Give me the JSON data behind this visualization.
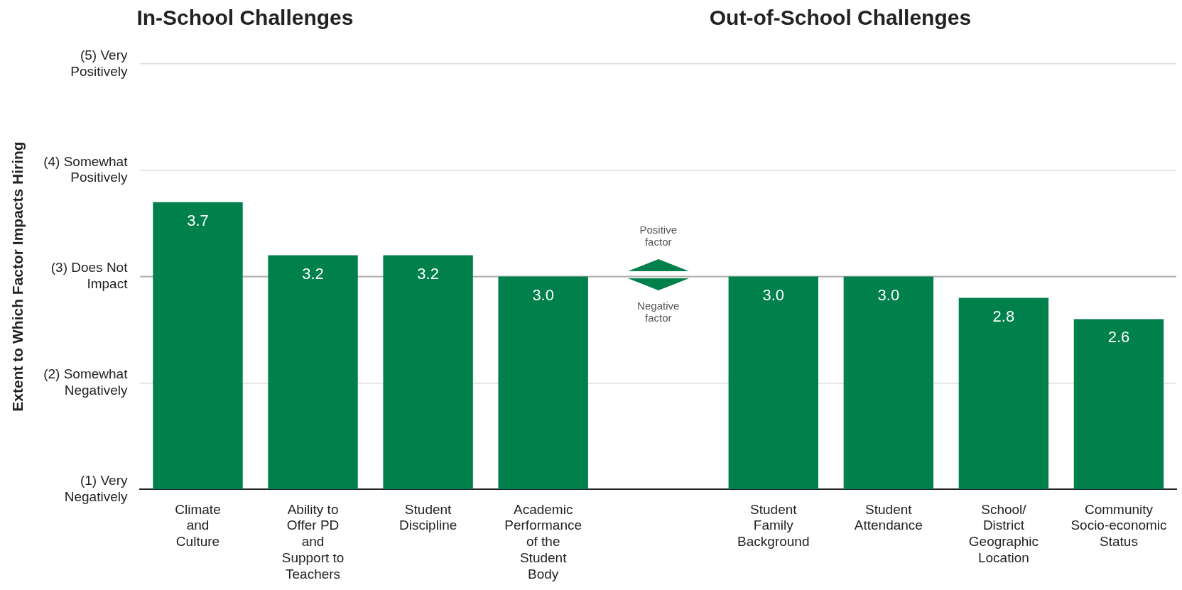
{
  "chart_data": {
    "type": "bar",
    "ylabel": "Extent to Which Factor Impacts Hiring",
    "categories": [
      "Climate and Culture",
      "Ability to Offer PD and Support to Teachers",
      "Student Discipline",
      "Academic Performance of the Student Body",
      null,
      "Student Family Background",
      "Student Attendance",
      "School/ District Geographic Location",
      "Community Socio-economic Status"
    ],
    "values": [
      3.7,
      3.2,
      3.2,
      3.0,
      null,
      3.0,
      3.0,
      2.8,
      2.6
    ],
    "color": "#00804a",
    "value_labels": [
      "3.7",
      "3.2",
      "3.2",
      "3.0",
      null,
      "3.0",
      "3.0",
      "2.8",
      "2.6"
    ],
    "ylim": [
      1,
      5
    ],
    "yticks": [
      {
        "value": 1,
        "label": "(1) Very Negatively"
      },
      {
        "value": 2,
        "label": "(2) Somewhat Negatively"
      },
      {
        "value": 3,
        "label": "(3) Does Not Impact"
      },
      {
        "value": 4,
        "label": "(4) Somewhat Positively"
      },
      {
        "value": 5,
        "label": "(5) Very Positively"
      }
    ],
    "grid": "y",
    "ref_lines": [
      {
        "axis": "y",
        "value": 3,
        "color": "#b0b0b0"
      }
    ],
    "annotations": [
      "In-School Challenges",
      "Out-of-School Challenges",
      "Positive factor",
      "Negative factor"
    ],
    "legend": false
  }
}
